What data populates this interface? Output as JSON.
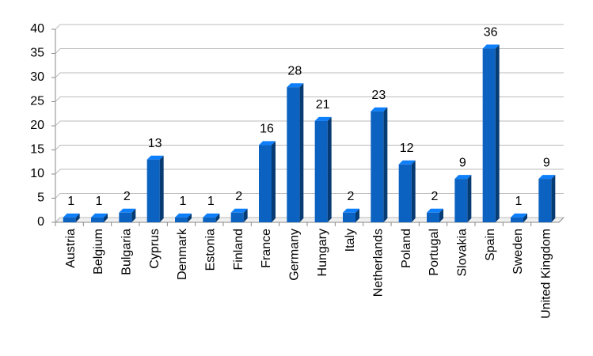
{
  "chart_data": {
    "type": "bar",
    "categories": [
      "Austria",
      "Belgium",
      "Bulgaria",
      "Cyprus",
      "Denmark",
      "Estonia",
      "Finland",
      "France",
      "Germany",
      "Hungary",
      "Italy",
      "Netherlands",
      "Poland",
      "Portugal",
      "Slovakia",
      "Spain",
      "Sweden",
      "United Kingdom"
    ],
    "values": [
      1,
      1,
      2,
      13,
      1,
      1,
      2,
      16,
      28,
      21,
      2,
      23,
      12,
      2,
      9,
      36,
      1,
      9
    ],
    "color": "#0b62c0",
    "ylim": [
      0,
      40
    ],
    "yticks": [
      0,
      5,
      10,
      15,
      20,
      25,
      30,
      35,
      40
    ],
    "grid": true
  }
}
